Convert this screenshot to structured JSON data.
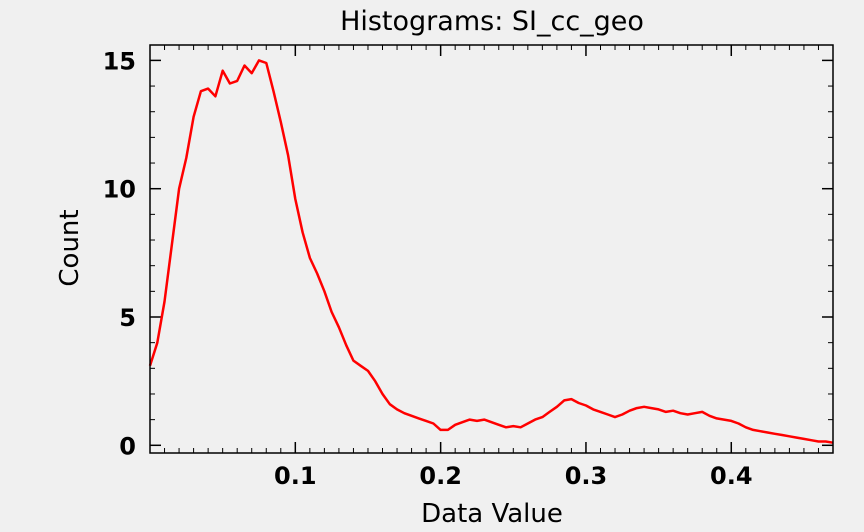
{
  "chart_data": {
    "type": "line",
    "title": "Histograms: SI_cc_geo",
    "xlabel": "Data Value",
    "ylabel": "Count",
    "xlim": [
      0.0,
      0.47
    ],
    "ylim": [
      -0.3,
      15.6
    ],
    "xticks": [
      0.1,
      0.2,
      0.3,
      0.4
    ],
    "xtick_labels": [
      "0.1",
      "0.2",
      "0.3",
      "0.4"
    ],
    "yticks": [
      0,
      5,
      10,
      15
    ],
    "ytick_labels": [
      "0",
      "5",
      "10",
      "15"
    ],
    "grid": false,
    "legend": "none",
    "series": [
      {
        "color": "#ff0000",
        "x": [
          0.0,
          0.005,
          0.01,
          0.015,
          0.02,
          0.025,
          0.03,
          0.035,
          0.04,
          0.045,
          0.05,
          0.055,
          0.06,
          0.065,
          0.07,
          0.075,
          0.08,
          0.085,
          0.09,
          0.095,
          0.1,
          0.105,
          0.11,
          0.115,
          0.12,
          0.125,
          0.13,
          0.135,
          0.14,
          0.145,
          0.15,
          0.155,
          0.16,
          0.165,
          0.17,
          0.175,
          0.18,
          0.185,
          0.19,
          0.195,
          0.2,
          0.205,
          0.21,
          0.215,
          0.22,
          0.225,
          0.23,
          0.235,
          0.24,
          0.245,
          0.25,
          0.255,
          0.26,
          0.265,
          0.27,
          0.275,
          0.28,
          0.285,
          0.29,
          0.295,
          0.3,
          0.305,
          0.31,
          0.315,
          0.32,
          0.325,
          0.33,
          0.335,
          0.34,
          0.345,
          0.35,
          0.355,
          0.36,
          0.365,
          0.37,
          0.375,
          0.38,
          0.385,
          0.39,
          0.395,
          0.4,
          0.405,
          0.41,
          0.415,
          0.42,
          0.425,
          0.43,
          0.435,
          0.44,
          0.445,
          0.45,
          0.455,
          0.46,
          0.465,
          0.47
        ],
        "y": [
          3.1,
          4.0,
          5.6,
          7.8,
          10.0,
          11.2,
          12.8,
          13.8,
          13.9,
          13.6,
          14.6,
          14.1,
          14.2,
          14.8,
          14.5,
          15.0,
          14.9,
          13.8,
          12.6,
          11.3,
          9.6,
          8.3,
          7.3,
          6.7,
          6.0,
          5.2,
          4.6,
          3.9,
          3.3,
          3.1,
          2.9,
          2.5,
          2.0,
          1.6,
          1.4,
          1.25,
          1.15,
          1.05,
          0.95,
          0.85,
          0.6,
          0.6,
          0.8,
          0.9,
          1.0,
          0.95,
          1.0,
          0.9,
          0.8,
          0.7,
          0.75,
          0.7,
          0.85,
          1.0,
          1.1,
          1.3,
          1.5,
          1.75,
          1.8,
          1.65,
          1.55,
          1.4,
          1.3,
          1.2,
          1.1,
          1.2,
          1.35,
          1.45,
          1.5,
          1.45,
          1.4,
          1.3,
          1.35,
          1.25,
          1.2,
          1.25,
          1.3,
          1.15,
          1.05,
          1.0,
          0.95,
          0.85,
          0.7,
          0.6,
          0.55,
          0.5,
          0.45,
          0.4,
          0.35,
          0.3,
          0.25,
          0.2,
          0.15,
          0.15,
          0.1
        ]
      }
    ]
  }
}
